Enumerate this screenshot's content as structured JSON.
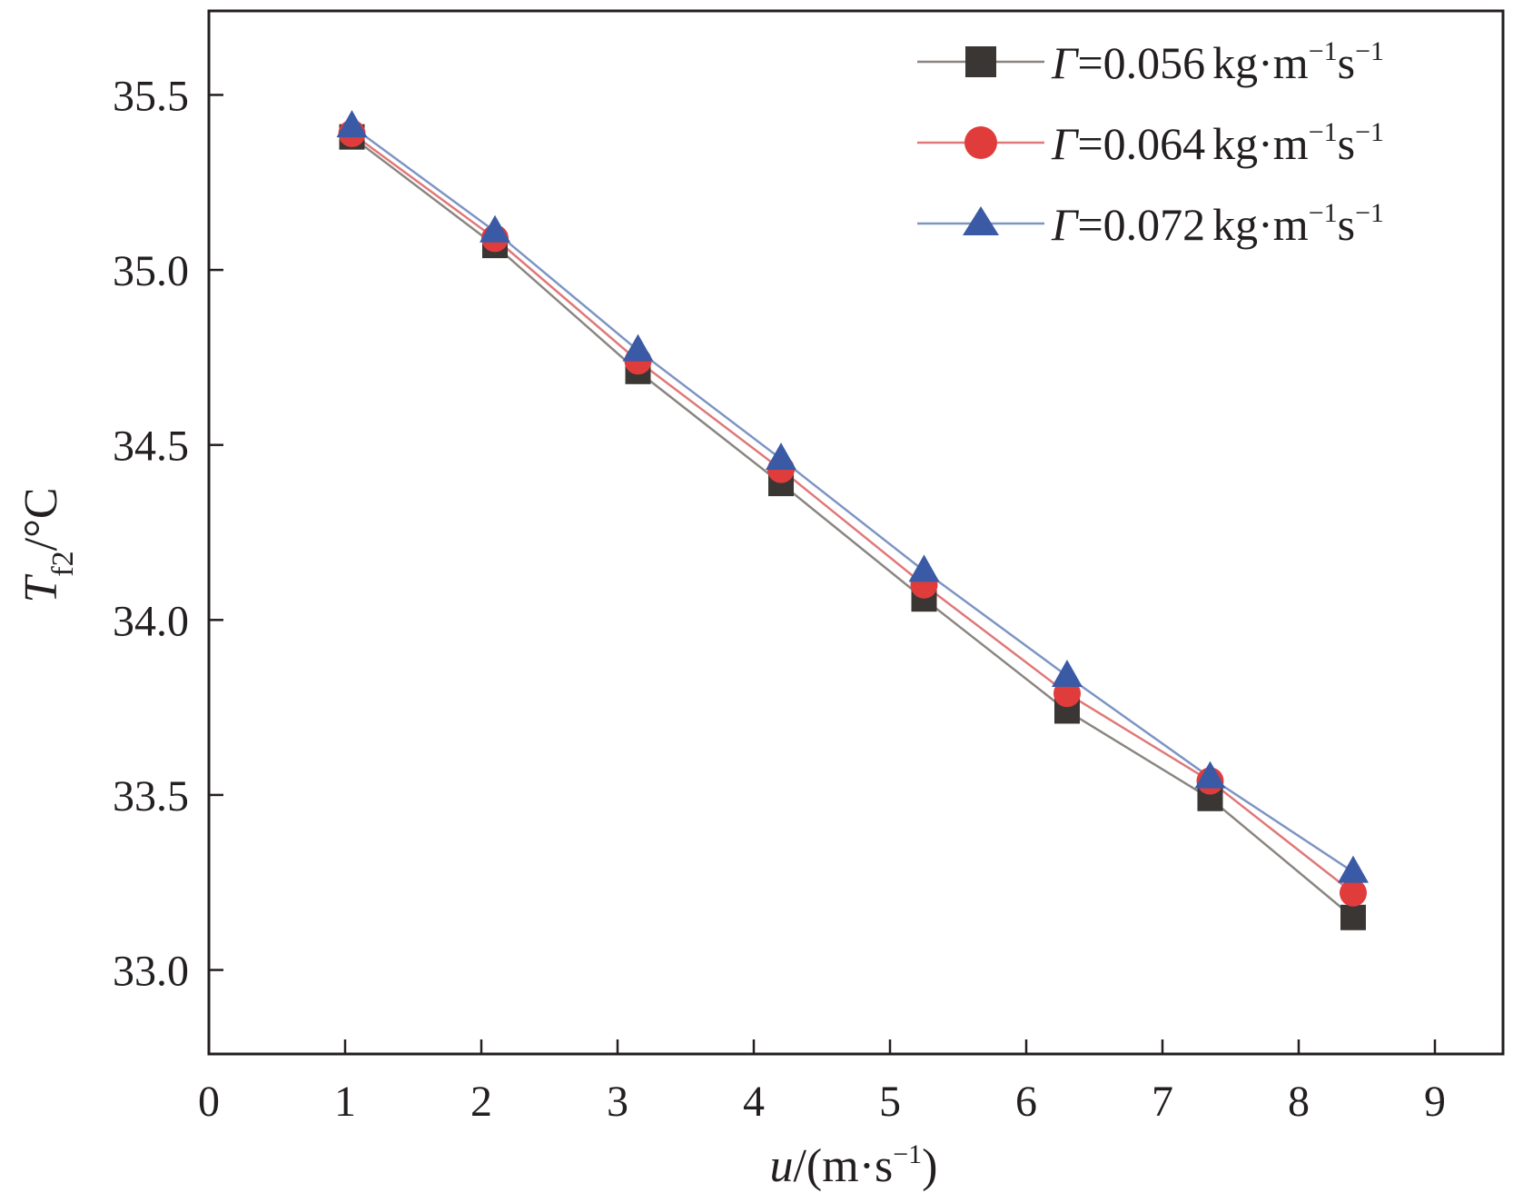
{
  "chart_data": {
    "type": "line",
    "x_axis": {
      "label_var": "u",
      "label_unit_open": "/(m·s",
      "label_unit_exp": "−1",
      "label_unit_close": ")",
      "range": [
        0,
        9.5
      ],
      "ticks": [
        0,
        1,
        2,
        3,
        4,
        5,
        6,
        7,
        8,
        9
      ],
      "tick_labels": [
        "0",
        "1",
        "2",
        "3",
        "4",
        "5",
        "6",
        "7",
        "8",
        "9"
      ]
    },
    "y_axis": {
      "label_var": "T",
      "label_sub": "f2",
      "label_unit": "/°C",
      "range": [
        32.76,
        35.74
      ],
      "ticks": [
        33.0,
        33.5,
        34.0,
        34.5,
        35.0,
        35.5
      ],
      "tick_labels": [
        "33.0",
        "33.5",
        "34.0",
        "34.5",
        "35.0",
        "35.5"
      ]
    },
    "grid": false,
    "legend_position": "top-right",
    "x": [
      1.05,
      2.1,
      3.15,
      4.2,
      5.25,
      6.3,
      7.35,
      8.4
    ],
    "series": [
      {
        "name": "Γ=0.056 kg·m⁻¹s⁻¹",
        "symbol": "Γ",
        "value_text": "=0.056",
        "unit_base": "kg·m",
        "unit_exp1": "−1",
        "unit_s": "s",
        "unit_exp2": "−1",
        "marker": "square",
        "line_color": "#8a8580",
        "marker_color": "#3a3634",
        "values": [
          35.38,
          35.07,
          34.71,
          34.39,
          34.06,
          33.74,
          33.49,
          33.15
        ]
      },
      {
        "name": "Γ=0.064 kg·m⁻¹s⁻¹",
        "symbol": "Γ",
        "value_text": "=0.064",
        "unit_base": "kg·m",
        "unit_exp1": "−1",
        "unit_s": "s",
        "unit_exp2": "−1",
        "marker": "circle",
        "line_color": "#e07878",
        "marker_color": "#e03c3c",
        "values": [
          35.39,
          35.09,
          34.74,
          34.43,
          34.1,
          33.79,
          33.54,
          33.22
        ]
      },
      {
        "name": "Γ=0.072 kg·m⁻¹s⁻¹",
        "symbol": "Γ",
        "value_text": "=0.072",
        "unit_base": "kg·m",
        "unit_exp1": "−1",
        "unit_s": "s",
        "unit_exp2": "−1",
        "marker": "triangle",
        "line_color": "#7d95c4",
        "marker_color": "#3b5aa6",
        "values": [
          35.41,
          35.11,
          34.77,
          34.46,
          34.14,
          33.84,
          33.55,
          33.28
        ]
      }
    ]
  }
}
